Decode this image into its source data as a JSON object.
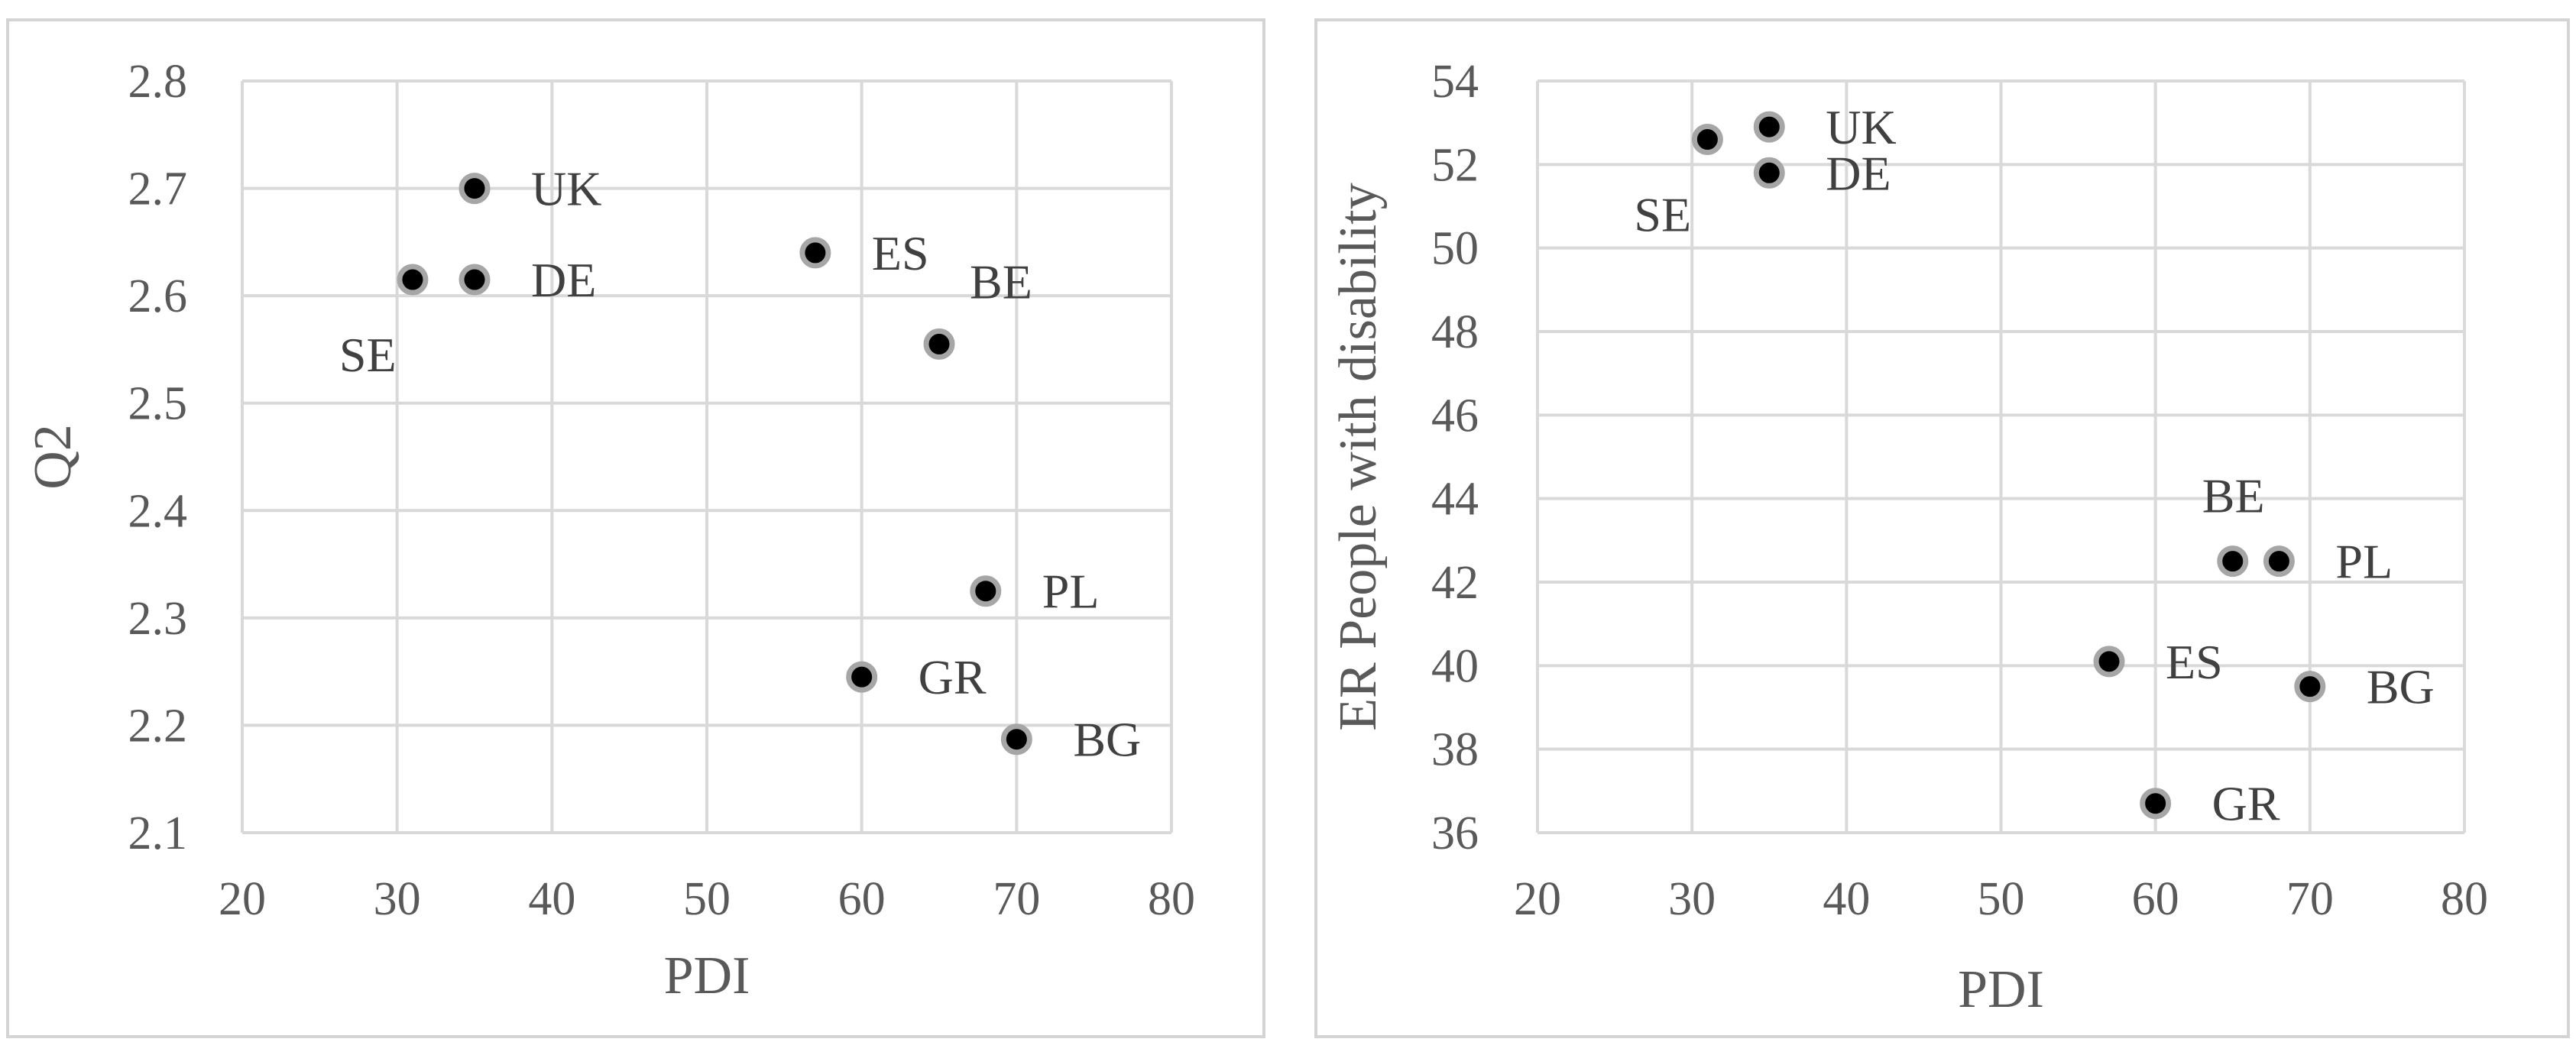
{
  "chart_data": [
    {
      "type": "scatter",
      "xlabel": "PDI",
      "ylabel": "Q2",
      "xlim": [
        20,
        80
      ],
      "ylim": [
        2.1,
        2.8
      ],
      "xticks": [
        "20",
        "30",
        "40",
        "50",
        "60",
        "70",
        "80"
      ],
      "yticks": [
        "2.1",
        "2.2",
        "2.3",
        "2.4",
        "2.5",
        "2.6",
        "2.7",
        "2.8"
      ],
      "grid": true,
      "points": [
        {
          "label": "UK",
          "x": 35,
          "y": 2.7,
          "label_pos": "right"
        },
        {
          "label": "DE",
          "x": 35,
          "y": 2.615,
          "label_pos": "right"
        },
        {
          "label": "SE",
          "x": 31,
          "y": 2.615,
          "label_pos": "below-left"
        },
        {
          "label": "ES",
          "x": 57,
          "y": 2.64,
          "label_pos": "right"
        },
        {
          "label": "BE",
          "x": 65,
          "y": 2.555,
          "label_pos": "above-right"
        },
        {
          "label": "PL",
          "x": 68,
          "y": 2.325,
          "label_pos": "right"
        },
        {
          "label": "GR",
          "x": 60,
          "y": 2.245,
          "label_pos": "right"
        },
        {
          "label": "BG",
          "x": 70,
          "y": 2.187,
          "label_pos": "right"
        }
      ]
    },
    {
      "type": "scatter",
      "xlabel": "PDI",
      "ylabel": "ER People with disability",
      "xlim": [
        20,
        80
      ],
      "ylim": [
        36,
        54
      ],
      "xticks": [
        "20",
        "30",
        "40",
        "50",
        "60",
        "70",
        "80"
      ],
      "yticks": [
        "36",
        "38",
        "40",
        "42",
        "44",
        "46",
        "48",
        "50",
        "52",
        "54"
      ],
      "grid": true,
      "points": [
        {
          "label": "UK",
          "x": 35,
          "y": 52.9,
          "label_pos": "right"
        },
        {
          "label": "DE",
          "x": 35,
          "y": 51.8,
          "label_pos": "right"
        },
        {
          "label": "SE",
          "x": 31,
          "y": 52.6,
          "label_pos": "below-left"
        },
        {
          "label": "BE",
          "x": 65,
          "y": 42.5,
          "label_pos": "above"
        },
        {
          "label": "PL",
          "x": 68,
          "y": 42.5,
          "label_pos": "right"
        },
        {
          "label": "ES",
          "x": 57,
          "y": 40.1,
          "label_pos": "right"
        },
        {
          "label": "BG",
          "x": 70,
          "y": 39.5,
          "label_pos": "right"
        },
        {
          "label": "GR",
          "x": 60,
          "y": 36.7,
          "label_pos": "right"
        }
      ]
    }
  ],
  "colors": {
    "marker_fill": "#000000",
    "marker_stroke": "#a6a6a6",
    "grid": "#d9d9d9",
    "text": "#595959"
  }
}
